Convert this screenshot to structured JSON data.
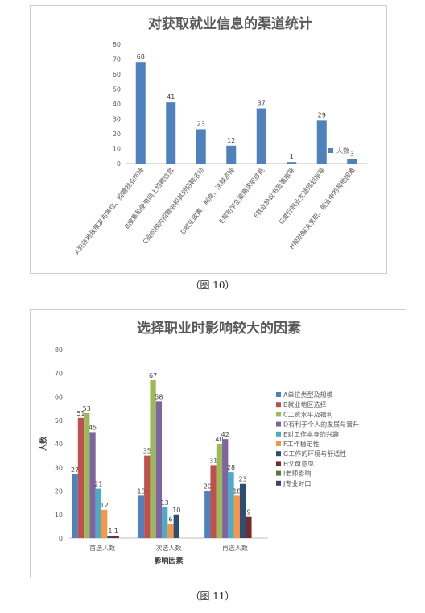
{
  "chart_data": [
    {
      "type": "bar",
      "title": "对获取就业信息的渠道统计",
      "categories": [
        "A到各地政策发布单位、招聘就业市场",
        "B搜集和使用网上招聘信息",
        "C组织校内招聘会和其他招聘活动",
        "D就业政策、制度、法规咨询",
        "E帮助学生提高求职技能",
        "F就业协议书签署指导",
        "G进行职业生涯规划指导",
        "H帮助解决求职、就业中的其他困难"
      ],
      "series": [
        {
          "name": "人数",
          "values": [
            68,
            41,
            23,
            12,
            37,
            1,
            29,
            3
          ],
          "color": "#4F81BD"
        }
      ],
      "ylim": [
        0,
        80
      ],
      "yticks": [
        0,
        10,
        20,
        30,
        40,
        50,
        60,
        70,
        80
      ],
      "xlabel": "",
      "ylabel": "",
      "legend": "right",
      "grid": false
    },
    {
      "type": "bar",
      "title": "选择职业时影响较大的因素",
      "categories": [
        "首选人数",
        "次选人数",
        "再选人数"
      ],
      "series": [
        {
          "name": "A单位类型及规模",
          "values": [
            27,
            18,
            20
          ],
          "color": "#4F81BD"
        },
        {
          "name": "B就业地区选择",
          "values": [
            51,
            35,
            31
          ],
          "color": "#C0504D"
        },
        {
          "name": "C工资水平及福利",
          "values": [
            53,
            67,
            40
          ],
          "color": "#9BBB59"
        },
        {
          "name": "D有利于个人的发展与晋升",
          "values": [
            45,
            58,
            42
          ],
          "color": "#8064A2"
        },
        {
          "name": "E对工作本身的兴趣",
          "values": [
            21,
            13,
            28
          ],
          "color": "#4BACC6"
        },
        {
          "name": "F工作稳定性",
          "values": [
            12,
            6,
            18
          ],
          "color": "#F79646"
        },
        {
          "name": "G工作的环境与舒适性",
          "values": [
            1,
            10,
            23
          ],
          "color": "#2C4D75"
        },
        {
          "name": "H父母意见",
          "values": [
            1,
            0,
            9
          ],
          "color": "#772C2A"
        },
        {
          "name": "I老师影响",
          "values": [
            0,
            0,
            0
          ],
          "color": "#5F7530"
        },
        {
          "name": "J专业对口",
          "values": [
            0,
            0,
            0
          ],
          "color": "#4D3B62"
        }
      ],
      "ylim": [
        0,
        80
      ],
      "yticks": [
        0,
        10,
        20,
        30,
        40,
        50,
        60,
        70,
        80
      ],
      "xlabel": "影响因素",
      "ylabel": "人数",
      "legend": "right",
      "grid": false
    }
  ],
  "captions": {
    "fig10": "（图 10）",
    "fig11": "（图 11）"
  }
}
